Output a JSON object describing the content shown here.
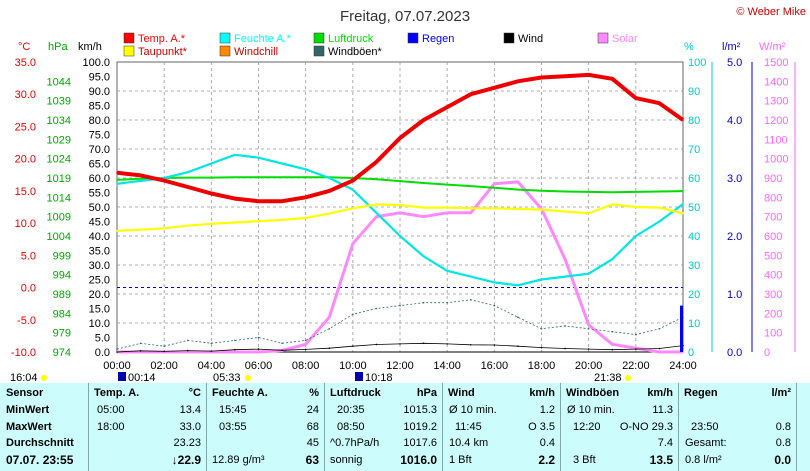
{
  "title": "Freitag, 07.07.2023",
  "copyright": "© Weber Mike",
  "legend": [
    {
      "label": "Temp. A.*",
      "color": "#ff0000"
    },
    {
      "label": "Feuchte A.*",
      "color": "#00ffff"
    },
    {
      "label": "Luftdruck",
      "color": "#00dd00"
    },
    {
      "label": "Regen",
      "color": "#0000ff"
    },
    {
      "label": "Wind",
      "color": "#000000"
    },
    {
      "label": "Solar",
      "color": "#ff88ff"
    },
    {
      "label": "Taupunkt*",
      "color": "#ffff00"
    },
    {
      "label": "Windchill",
      "color": "#ff8800"
    },
    {
      "label": "Windböen*",
      "color": "#336666"
    }
  ],
  "colors": {
    "temp": "#ee0000",
    "humidity": "#00e5e5",
    "pressure": "#00dd00",
    "rain": "#0000ff",
    "wind": "#000000",
    "solar": "#ff88ff",
    "dewpoint": "#ffff00",
    "windchill": "#ff8800",
    "gusts": "#336666"
  },
  "axes": {
    "temp": {
      "unit": "°C",
      "ticks": [
        "35.0",
        "30.0",
        "25.0",
        "20.0",
        "15.0",
        "10.0",
        "5.0",
        "0.0",
        "-5.0",
        "-10.0"
      ]
    },
    "pressure": {
      "unit": "hPa",
      "ticks": [
        "1044",
        "1039",
        "1034",
        "1029",
        "1024",
        "1019",
        "1014",
        "1009",
        "1004",
        "999",
        "994",
        "989",
        "984",
        "979",
        "974"
      ]
    },
    "wind": {
      "unit": "km/h",
      "ticks": [
        "100.0",
        "95.0",
        "90.0",
        "85.0",
        "80.0",
        "75.0",
        "70.0",
        "65.0",
        "60.0",
        "55.0",
        "50.0",
        "45.0",
        "40.0",
        "35.0",
        "30.0",
        "25.0",
        "20.0",
        "15.0",
        "10.0",
        "5.0",
        "0.0"
      ]
    },
    "humidity": {
      "unit": "%",
      "ticks": [
        "100",
        "90",
        "80",
        "70",
        "60",
        "50",
        "40",
        "30",
        "20",
        "10",
        "0"
      ]
    },
    "rain": {
      "unit": "l/m²",
      "ticks": [
        "5.0",
        "4.0",
        "3.0",
        "2.0",
        "1.0",
        "0.0"
      ]
    },
    "solar": {
      "unit": "W/m²",
      "ticks": [
        "1500",
        "1400",
        "1300",
        "1200",
        "1100",
        "1000",
        "900",
        "800",
        "700",
        "600",
        "500",
        "400",
        "300",
        "200",
        "100",
        "0"
      ]
    },
    "time": [
      "00:00",
      "02:00",
      "04:00",
      "06:00",
      "08:00",
      "10:00",
      "12:00",
      "14:00",
      "16:00",
      "18:00",
      "20:00",
      "22:00",
      "24:00"
    ]
  },
  "sun": {
    "night_start": "16:04",
    "sunrise": "00:14",
    "sunrise2": "05:33",
    "moon": "10:18",
    "sunset": "21:38"
  },
  "chart_data": {
    "type": "line",
    "x": [
      0,
      1,
      2,
      3,
      4,
      5,
      6,
      7,
      8,
      9,
      10,
      11,
      12,
      13,
      14,
      15,
      16,
      17,
      18,
      19,
      20,
      21,
      22,
      23,
      24
    ],
    "xlabel": "",
    "series": [
      {
        "name": "Temp. A.*",
        "unit": "°C",
        "values": [
          17.8,
          17.4,
          16.6,
          15.6,
          14.6,
          13.8,
          13.4,
          13.4,
          14.0,
          15.0,
          16.6,
          19.5,
          23.2,
          26.0,
          28.0,
          30.0,
          31.0,
          32.0,
          32.6,
          32.8,
          33.0,
          32.4,
          29.4,
          28.6,
          26.0
        ]
      },
      {
        "name": "Feuchte A.*",
        "unit": "%",
        "values": [
          58,
          59,
          60,
          62,
          65,
          68,
          67,
          65,
          63,
          60,
          56,
          48,
          40,
          33,
          28,
          26,
          24,
          23,
          25,
          26,
          27,
          32,
          40,
          45,
          51
        ]
      },
      {
        "name": "Luftdruck",
        "unit": "hPa",
        "values": [
          1018.5,
          1018.8,
          1019.0,
          1019.1,
          1019.1,
          1019.2,
          1019.2,
          1019.2,
          1019.2,
          1019.2,
          1019.0,
          1018.7,
          1018.2,
          1017.7,
          1017.3,
          1016.9,
          1016.5,
          1016.0,
          1015.7,
          1015.5,
          1015.4,
          1015.3,
          1015.4,
          1015.5,
          1015.6
        ]
      },
      {
        "name": "Taupunkt*",
        "unit": "°C",
        "values": [
          8.8,
          9.0,
          9.2,
          9.6,
          9.9,
          10.1,
          10.3,
          10.5,
          10.8,
          11.5,
          12.3,
          12.9,
          12.8,
          12.4,
          12.4,
          12.3,
          12.3,
          12.2,
          12.1,
          11.8,
          11.5,
          12.9,
          12.5,
          12.4,
          11.5
        ]
      },
      {
        "name": "Windböen*",
        "unit": "km/h",
        "values": [
          1,
          3,
          2,
          4,
          3,
          4,
          5,
          3,
          4,
          8,
          13,
          15,
          16,
          17,
          17,
          18,
          16,
          12,
          8,
          9,
          8,
          7,
          6,
          8,
          12
        ]
      },
      {
        "name": "Wind",
        "unit": "km/h",
        "values": [
          0,
          0.4,
          0.2,
          0.5,
          0.3,
          0.8,
          1.0,
          0.6,
          0.9,
          1.3,
          2.0,
          2.6,
          2.8,
          3.0,
          2.8,
          2.5,
          2.4,
          2.0,
          1.5,
          1.2,
          1.0,
          0.8,
          1.0,
          1.2,
          2.2
        ]
      },
      {
        "name": "Solar",
        "unit": "W/m²",
        "values": [
          0,
          0,
          0,
          0,
          0,
          0,
          0,
          8,
          40,
          180,
          560,
          700,
          720,
          700,
          720,
          720,
          870,
          880,
          740,
          480,
          140,
          40,
          20,
          0,
          0
        ]
      },
      {
        "name": "Regen",
        "unit": "l/m²",
        "values": [
          0,
          0,
          0,
          0,
          0,
          0,
          0,
          0,
          0,
          0,
          0,
          0,
          0,
          0,
          0,
          0,
          0,
          0,
          0,
          0,
          0,
          0,
          0,
          0,
          0.8
        ]
      }
    ],
    "ylim": {
      "temp": [
        -10,
        35
      ],
      "pressure": [
        974,
        1049
      ],
      "wind": [
        0,
        100
      ],
      "humidity": [
        0,
        100
      ],
      "rain": [
        0,
        5
      ],
      "solar": [
        0,
        1500
      ]
    },
    "grid": true
  },
  "stats": {
    "columns": [
      "Sensor",
      "Temp. A.",
      "Feuchte A.",
      "Luftdruck",
      "Wind",
      "Windböen",
      "Regen"
    ],
    "units": {
      "temp": "°C",
      "hum": "%",
      "press": "hPa",
      "wind": "km/h",
      "gust": "km/h",
      "rain": "l/m²"
    },
    "row_labels": [
      "MinWert",
      "MaxWert",
      "Durchschnitt",
      "07.07. 23:55"
    ],
    "temp": [
      [
        "05:00",
        "13.4"
      ],
      [
        "18:00",
        "33.0"
      ],
      [
        "",
        "23.23"
      ],
      [
        "↓22.9",
        ""
      ]
    ],
    "hum": [
      [
        "15:45",
        "24"
      ],
      [
        "03:55",
        "68"
      ],
      [
        "",
        "45"
      ],
      [
        "12.89 g/m³",
        "63"
      ]
    ],
    "press": [
      [
        "20:35",
        "1015.3"
      ],
      [
        "08:50",
        "1019.2"
      ],
      [
        "^0.7hPa/h",
        "1017.6"
      ],
      [
        "sonnig",
        "1016.0"
      ]
    ],
    "wind": [
      [
        "Ø 10 min.",
        "1.2"
      ],
      [
        "11:45",
        "O 3.5"
      ],
      [
        "10.4 km",
        "0.4"
      ],
      [
        "1 Bft",
        "2.2"
      ]
    ],
    "gust": [
      [
        "Ø 10 min.",
        "11.3"
      ],
      [
        "12:20",
        "O-NO 29.3"
      ],
      [
        "",
        "7.4"
      ],
      [
        "3 Bft",
        "13.5"
      ]
    ],
    "rain": [
      [
        "",
        ""
      ],
      [
        "23:50",
        "0.8"
      ],
      [
        "Gesamt:",
        "0.8"
      ],
      [
        "0.8 l/m²",
        "0.0"
      ]
    ]
  }
}
